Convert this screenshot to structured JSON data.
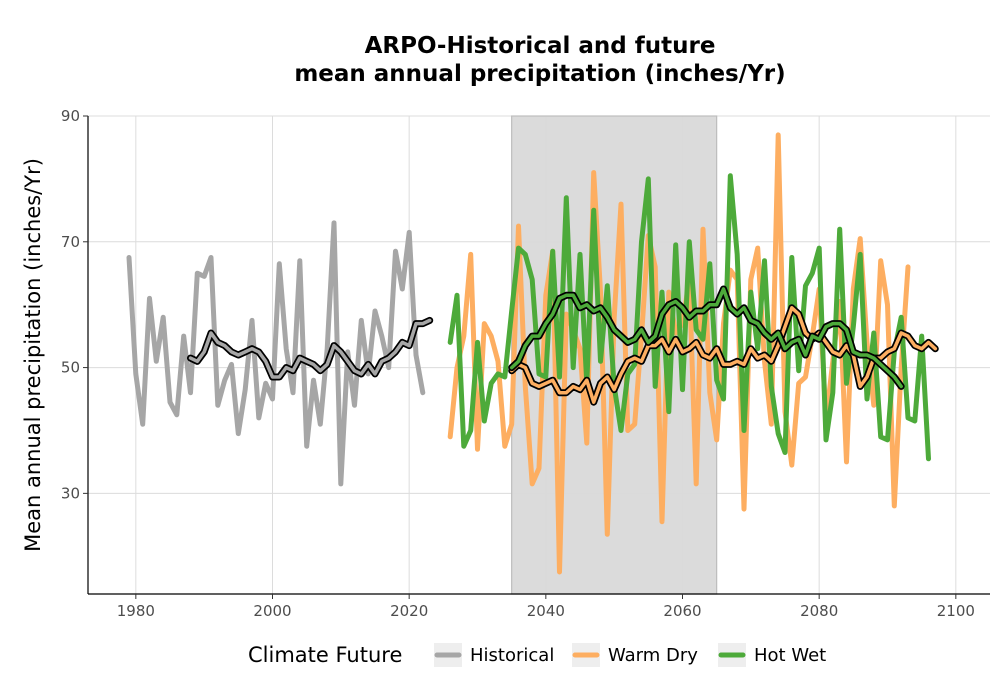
{
  "chart_data": {
    "type": "line",
    "title_lines": [
      "ARPO-Historical and future",
      "mean annual precipitation (inches/Yr)"
    ],
    "xlabel": "",
    "ylabel": "Mean annual precipitation (inches/Yr)",
    "xlim": [
      1973,
      2105
    ],
    "ylim": [
      14,
      90
    ],
    "x_ticks": [
      1980,
      2000,
      2020,
      2040,
      2060,
      2080,
      2100
    ],
    "y_ticks": [
      30,
      50,
      70,
      90
    ],
    "grid": true,
    "shaded_period": [
      2035,
      2065
    ],
    "legend": {
      "title": "Climate Future",
      "position": "bottom",
      "entries": [
        {
          "label": "Historical",
          "color": "#a6a6a6"
        },
        {
          "label": "Warm Dry",
          "color": "#fdae61"
        },
        {
          "label": "Hot Wet",
          "color": "#4daa3a"
        }
      ]
    },
    "series": [
      {
        "key": "historical",
        "color": "#a6a6a6",
        "x_start": 1979,
        "values": [
          67.5,
          49.0,
          41.0,
          61.0,
          51.0,
          58.0,
          44.5,
          42.5,
          55.0,
          46.0,
          65.0,
          64.5,
          67.5,
          44.0,
          48.0,
          50.5,
          39.5,
          46.5,
          57.5,
          42.0,
          47.5,
          45.0,
          66.5,
          53.0,
          46.0,
          67.0,
          37.5,
          48.0,
          41.0,
          53.0,
          73.0,
          31.5,
          52.5,
          44.0,
          57.5,
          49.0,
          59.0,
          55.0,
          50.0,
          68.5,
          62.5,
          71.5,
          52.0,
          46.0
        ],
        "smooth_x_start": 1988,
        "smooth": [
          51.5,
          51.0,
          52.5,
          55.5,
          54.0,
          53.5,
          52.5,
          52.0,
          52.5,
          53.0,
          52.5,
          51.0,
          48.5,
          48.5,
          50.0,
          49.5,
          51.5,
          51.0,
          50.5,
          49.5,
          50.5,
          53.5,
          52.5,
          51.0,
          49.5,
          49.0,
          50.5,
          49.0,
          51.0,
          51.5,
          52.5,
          54.0,
          53.5,
          57.0,
          57.0,
          57.5
        ]
      },
      {
        "key": "warm_dry",
        "color": "#fdae61",
        "x_start": 2026,
        "values": [
          39.0,
          50.0,
          55.0,
          68.0,
          37.0,
          57.0,
          55.0,
          51.0,
          37.5,
          41.0,
          72.5,
          47.0,
          31.5,
          34.0,
          61.5,
          68.5,
          17.5,
          58.5,
          56.0,
          53.0,
          38.0,
          81.0,
          62.0,
          23.5,
          58.0,
          76.0,
          40.0,
          41.0,
          55.0,
          71.0,
          66.0,
          25.5,
          62.0,
          55.5,
          57.0,
          64.0,
          31.5,
          72.0,
          46.0,
          38.5,
          57.0,
          65.5,
          64.0,
          27.5,
          64.0,
          69.0,
          51.0,
          41.0,
          87.0,
          43.0,
          34.5,
          47.5,
          48.5,
          55.0,
          62.5,
          41.5,
          51.0,
          60.5,
          35.0,
          62.5,
          70.5,
          54.0,
          44.0,
          67.0,
          60.0,
          28.0,
          50.0,
          66.0
        ],
        "smooth_x_start": 2035,
        "smooth": [
          49.5,
          50.5,
          50.0,
          47.5,
          47.0,
          47.5,
          48.0,
          46.0,
          46.0,
          47.0,
          46.5,
          48.0,
          44.5,
          47.5,
          48.5,
          46.5,
          49.0,
          51.0,
          51.5,
          51.0,
          53.5,
          53.5,
          54.5,
          52.5,
          54.5,
          52.5,
          53.0,
          54.0,
          52.0,
          51.5,
          53.0,
          50.5,
          50.5,
          51.0,
          50.5,
          53.0,
          51.5,
          52.0,
          51.0,
          53.5,
          56.5,
          59.5,
          58.5,
          55.5,
          54.5,
          55.5,
          54.0,
          52.5,
          52.0,
          53.5,
          52.0,
          47.0,
          48.5,
          51.5,
          51.5,
          52.5,
          53.0,
          55.5,
          55.0,
          53.5,
          53.0,
          54.0,
          53.0
        ]
      },
      {
        "key": "hot_wet",
        "color": "#4daa3a",
        "x_start": 2026,
        "values": [
          54.0,
          61.5,
          37.5,
          40.0,
          54.0,
          41.5,
          47.5,
          49.0,
          48.5,
          59.0,
          69.0,
          68.0,
          64.0,
          49.0,
          48.5,
          68.5,
          48.5,
          77.0,
          50.0,
          68.0,
          47.5,
          75.0,
          51.0,
          63.0,
          47.0,
          40.0,
          49.0,
          50.5,
          70.0,
          80.0,
          47.0,
          62.0,
          43.0,
          69.5,
          46.5,
          70.0,
          56.0,
          54.5,
          66.5,
          48.0,
          45.0,
          80.5,
          68.0,
          40.0,
          62.0,
          53.0,
          67.0,
          47.0,
          39.5,
          36.5,
          67.5,
          49.5,
          63.0,
          65.0,
          69.0,
          38.5,
          46.0,
          72.0,
          47.5,
          56.5,
          68.0,
          45.0,
          55.5,
          39.0,
          38.5,
          52.5,
          58.0,
          42.0,
          41.5,
          55.0,
          35.5
        ],
        "smooth_x_start": 2035,
        "smooth": [
          50.0,
          51.0,
          53.5,
          55.0,
          55.0,
          57.0,
          58.5,
          61.0,
          61.5,
          61.5,
          59.5,
          60.0,
          59.0,
          59.5,
          58.0,
          56.0,
          55.0,
          54.0,
          54.5,
          56.0,
          54.0,
          55.0,
          58.5,
          60.0,
          60.5,
          59.5,
          58.0,
          59.0,
          59.0,
          60.0,
          60.0,
          62.5,
          59.5,
          58.5,
          59.5,
          57.5,
          57.0,
          55.5,
          54.5,
          55.5,
          53.0,
          54.0,
          54.5,
          52.0,
          55.0,
          54.5,
          56.5,
          57.0,
          57.0,
          56.0,
          52.5,
          52.0,
          52.0,
          51.5,
          50.5,
          49.5,
          48.5,
          47.0
        ]
      }
    ]
  }
}
